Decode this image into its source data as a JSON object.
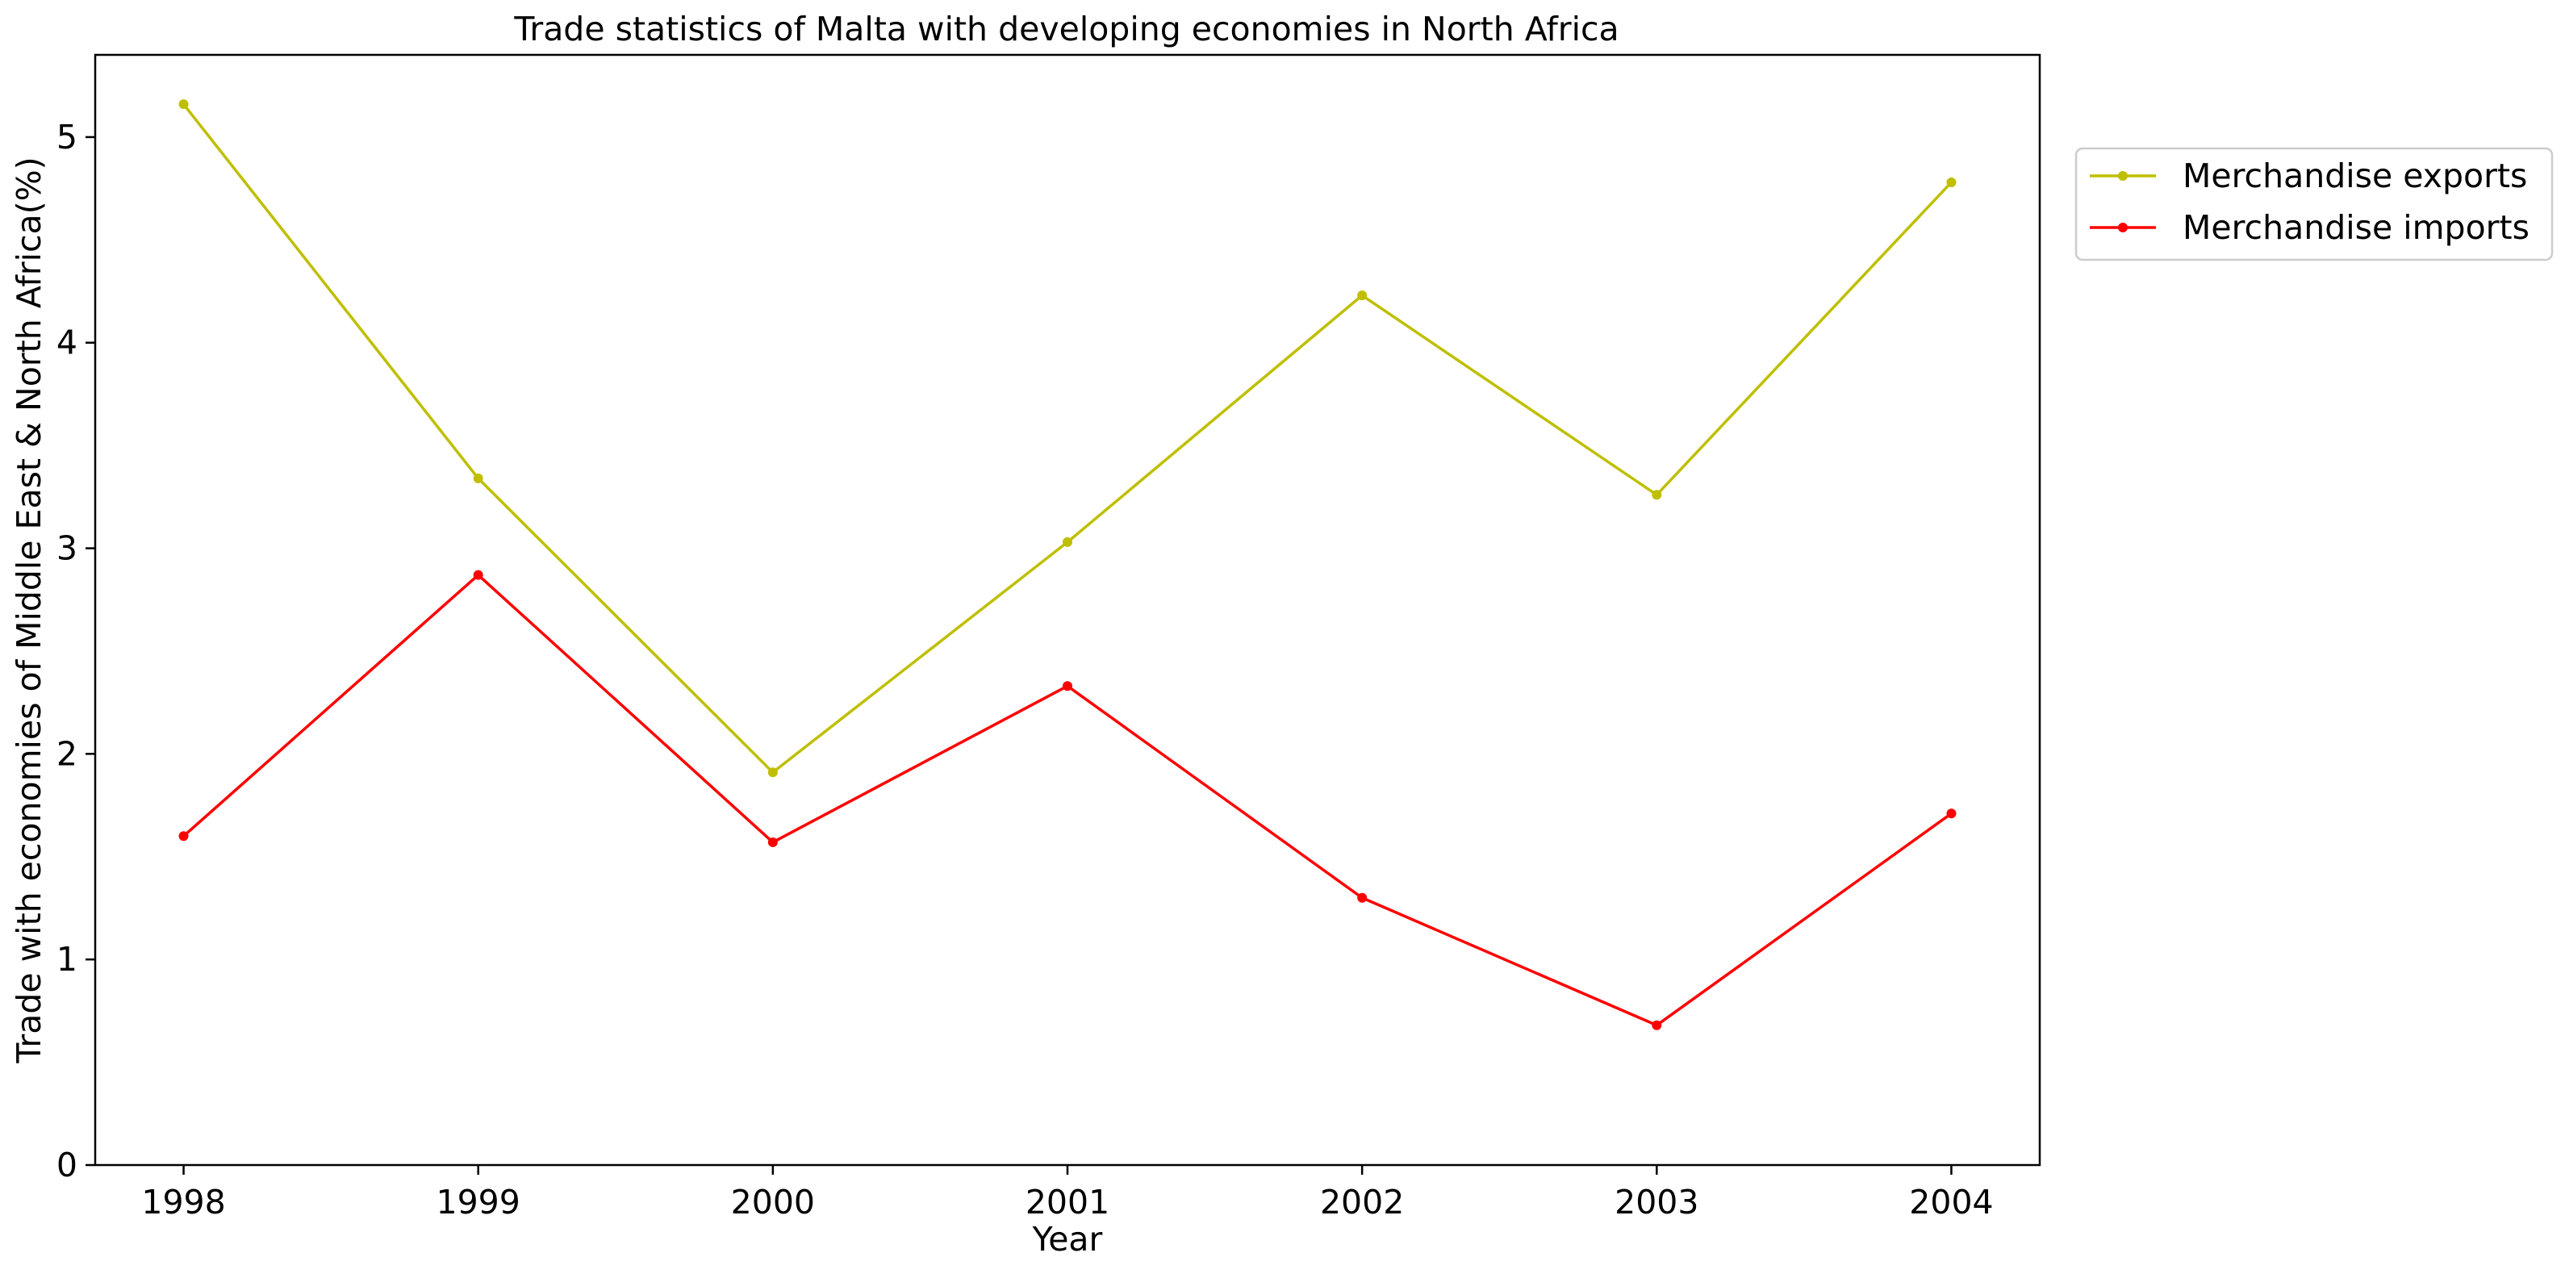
{
  "chart_data": {
    "type": "line",
    "title": "Trade statistics of Malta with developing economies in North Africa",
    "xlabel": "Year",
    "ylabel": "Trade with economies of Middle East & North Africa(%)",
    "x": [
      "1998",
      "1999",
      "2000",
      "2001",
      "2002",
      "2003",
      "2004"
    ],
    "xlim": [
      -0.3,
      6.3
    ],
    "ylim": [
      0,
      5.4
    ],
    "yticks": [
      "0",
      "1",
      "2",
      "3",
      "4",
      "5"
    ],
    "grid": false,
    "legend_position": "outside-top-right",
    "series": [
      {
        "name": "Merchandise exports",
        "color": "#bfbf00",
        "marker": "dot",
        "values": [
          5.16,
          3.34,
          1.91,
          3.03,
          4.23,
          3.26,
          4.78
        ]
      },
      {
        "name": "Merchandise imports",
        "color": "#ff0000",
        "marker": "dot",
        "values": [
          1.6,
          2.87,
          1.57,
          2.33,
          1.3,
          0.68,
          1.71
        ]
      }
    ]
  }
}
